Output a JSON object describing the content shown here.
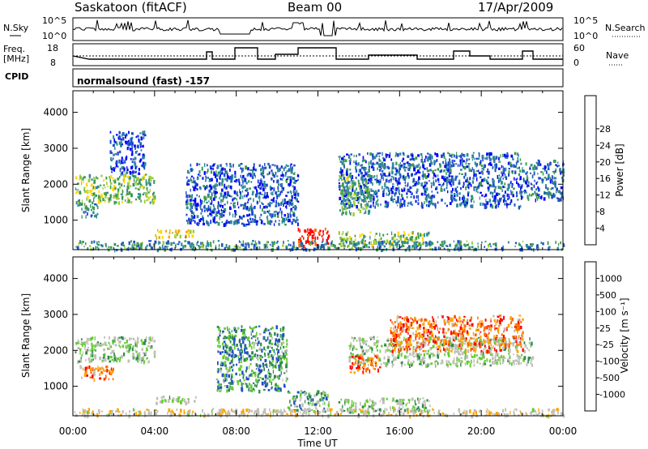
{
  "header": {
    "station": "Saskatoon (fitACF)",
    "beam": "Beam 00",
    "date": "17/Apr/2009"
  },
  "strips": {
    "nsky": {
      "left_label": "N.Sky",
      "right_label": "N.Search",
      "ticks": [
        "10^5",
        "10^0"
      ]
    },
    "freq": {
      "left_label_1": "Freq.",
      "left_label_2": "[MHz]",
      "right_label": "Nave",
      "left_ticks": [
        "18",
        "8"
      ],
      "right_ticks": [
        "60",
        "0"
      ]
    },
    "cpid": {
      "label": "CPID",
      "text": "normalsound (fast) -157"
    }
  },
  "chart_data": [
    {
      "type": "heatmap",
      "title": "",
      "ylabel": "Slant Range [km]",
      "xlim_hours": [
        0,
        24
      ],
      "ylim_km": [
        180,
        4600
      ],
      "yticks": [
        1000,
        2000,
        3000,
        4000
      ],
      "colorbar": {
        "label": "Power [dB]",
        "ticks": [
          "4",
          "8",
          "12",
          "16",
          "20",
          "24",
          "28"
        ],
        "colors": [
          "#0000ff",
          "#1f4fc8",
          "#2e8a9a",
          "#3f9a4f",
          "#9ccb3a",
          "#ffd700",
          "#ffa500",
          "#ff6a00",
          "#ff0000"
        ]
      },
      "regions": [
        {
          "t0": 0.1,
          "t1": 4.0,
          "r0": 1500,
          "r1": 2300,
          "level": 0.45
        },
        {
          "t0": 0.2,
          "t1": 1.2,
          "r0": 1100,
          "r1": 1500,
          "level": 0.25
        },
        {
          "t0": 1.8,
          "t1": 3.5,
          "r0": 2300,
          "r1": 3500,
          "level": 0.15
        },
        {
          "t0": 4.0,
          "t1": 5.9,
          "r0": 550,
          "r1": 750,
          "level": 0.6
        },
        {
          "t0": 5.5,
          "t1": 11.0,
          "r0": 900,
          "r1": 2600,
          "level": 0.2
        },
        {
          "t0": 11.0,
          "t1": 12.5,
          "r0": 300,
          "r1": 800,
          "level": 0.95
        },
        {
          "t0": 13.0,
          "t1": 22.0,
          "r0": 1400,
          "r1": 2900,
          "level": 0.2
        },
        {
          "t0": 13.0,
          "t1": 14.5,
          "r0": 1200,
          "r1": 2300,
          "level": 0.4
        },
        {
          "t0": 13.0,
          "t1": 17.5,
          "r0": 300,
          "r1": 700,
          "level": 0.45
        },
        {
          "t0": 22.0,
          "t1": 24.0,
          "r0": 1600,
          "r1": 2700,
          "level": 0.25
        },
        {
          "t0": 0.0,
          "t1": 24.0,
          "r0": 200,
          "r1": 450,
          "level": 0.3
        }
      ]
    },
    {
      "type": "heatmap",
      "title": "",
      "ylabel": "Slant Range [km]",
      "xlabel": "Time UT",
      "xlim_hours": [
        0,
        24
      ],
      "ylim_km": [
        180,
        4600
      ],
      "yticks": [
        1000,
        2000,
        3000,
        4000
      ],
      "xticks": [
        "00:00",
        "04:00",
        "08:00",
        "12:00",
        "16:00",
        "20:00",
        "00:00"
      ],
      "colorbar": {
        "label": "Velocity [m s⁻¹]",
        "ticks": [
          "1000",
          "500",
          "100",
          "25",
          "-25",
          "-100",
          "-500",
          "-1000"
        ],
        "colors": [
          "#0000ff",
          "#1f4fc8",
          "#2e8a4f",
          "#66cc33",
          "#c0c0b8",
          "#c0c0b8",
          "#ffa500",
          "#ff6a00",
          "#ff0000"
        ]
      },
      "regions": [
        {
          "t0": 0.1,
          "t1": 4.0,
          "r0": 1700,
          "r1": 2400,
          "level": 0.45
        },
        {
          "t0": 0.3,
          "t1": 2.0,
          "r0": 1200,
          "r1": 1600,
          "level": 0.78
        },
        {
          "t0": 4.0,
          "t1": 6.0,
          "r0": 550,
          "r1": 750,
          "level": 0.45
        },
        {
          "t0": 7.0,
          "t1": 10.5,
          "r0": 900,
          "r1": 2700,
          "level": 0.3
        },
        {
          "t0": 10.5,
          "t1": 12.5,
          "r0": 300,
          "r1": 900,
          "level": 0.35
        },
        {
          "t0": 13.5,
          "t1": 22.5,
          "r0": 1600,
          "r1": 2400,
          "level": 0.45
        },
        {
          "t0": 15.5,
          "t1": 22.0,
          "r0": 2000,
          "r1": 3000,
          "level": 0.8
        },
        {
          "t0": 13.5,
          "t1": 15.0,
          "r0": 1400,
          "r1": 1900,
          "level": 0.85
        },
        {
          "t0": 13.0,
          "t1": 17.5,
          "r0": 300,
          "r1": 700,
          "level": 0.45
        },
        {
          "t0": 0.0,
          "t1": 24.0,
          "r0": 200,
          "r1": 400,
          "level": 0.6
        }
      ]
    }
  ]
}
